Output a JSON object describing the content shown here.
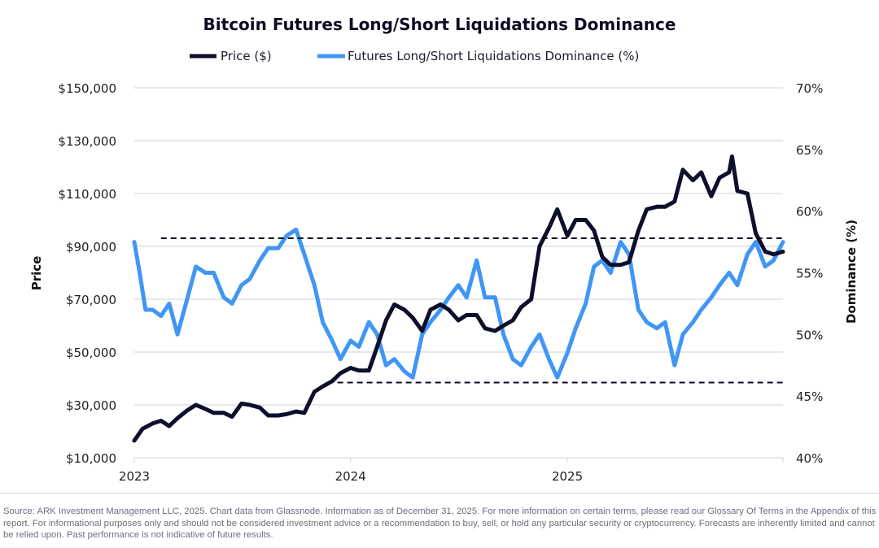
{
  "chart_data": {
    "type": "line",
    "title": "Bitcoin Futures Long/Short Liquidations Dominance",
    "legend_position": "top",
    "grid": true,
    "x_ticks": [
      "2023",
      "2024",
      "2025"
    ],
    "x_range": [
      "2023-01-01",
      "2025-12-31"
    ],
    "y_left": {
      "label": "Price",
      "range": [
        10000,
        150000
      ],
      "ticks": [
        "$10,000",
        "$30,000",
        "$50,000",
        "$70,000",
        "$90,000",
        "$110,000",
        "$130,000",
        "$150,000"
      ]
    },
    "y_right": {
      "label": "Dominance (%)",
      "range": [
        40,
        70
      ],
      "ticks": [
        "40%",
        "45%",
        "50%",
        "55%",
        "60%",
        "65%",
        "70%"
      ]
    },
    "reference_lines": [
      {
        "axis": "right",
        "value": 57.8,
        "start": "2023-02-15",
        "style": "dashed",
        "color": "#0b0b22"
      },
      {
        "axis": "right",
        "value": 46.1,
        "start": "2023-12-10",
        "style": "dashed",
        "color": "#0b0b22"
      }
    ],
    "series": [
      {
        "name": "Price ($)",
        "axis": "left",
        "color": "#0d0f2b",
        "points": [
          [
            "2023-01-01",
            16500
          ],
          [
            "2023-01-15",
            21000
          ],
          [
            "2023-02-01",
            23000
          ],
          [
            "2023-02-15",
            24000
          ],
          [
            "2023-03-01",
            22000
          ],
          [
            "2023-03-15",
            25000
          ],
          [
            "2023-04-01",
            28000
          ],
          [
            "2023-04-15",
            30000
          ],
          [
            "2023-05-01",
            28500
          ],
          [
            "2023-05-15",
            27000
          ],
          [
            "2023-06-01",
            27000
          ],
          [
            "2023-06-15",
            25500
          ],
          [
            "2023-07-01",
            30500
          ],
          [
            "2023-07-15",
            30000
          ],
          [
            "2023-08-01",
            29000
          ],
          [
            "2023-08-15",
            26000
          ],
          [
            "2023-09-01",
            26000
          ],
          [
            "2023-09-15",
            26500
          ],
          [
            "2023-10-01",
            27500
          ],
          [
            "2023-10-15",
            27000
          ],
          [
            "2023-11-01",
            35000
          ],
          [
            "2023-11-15",
            37000
          ],
          [
            "2023-12-01",
            39000
          ],
          [
            "2023-12-15",
            42000
          ],
          [
            "2024-01-01",
            44000
          ],
          [
            "2024-01-15",
            43000
          ],
          [
            "2024-02-01",
            43000
          ],
          [
            "2024-02-15",
            52000
          ],
          [
            "2024-03-01",
            62000
          ],
          [
            "2024-03-15",
            68000
          ],
          [
            "2024-04-01",
            66000
          ],
          [
            "2024-04-15",
            63000
          ],
          [
            "2024-05-01",
            58000
          ],
          [
            "2024-05-15",
            66000
          ],
          [
            "2024-06-01",
            68000
          ],
          [
            "2024-06-15",
            66000
          ],
          [
            "2024-07-01",
            62000
          ],
          [
            "2024-07-15",
            64000
          ],
          [
            "2024-08-01",
            64000
          ],
          [
            "2024-08-15",
            59000
          ],
          [
            "2024-09-01",
            58000
          ],
          [
            "2024-09-15",
            60000
          ],
          [
            "2024-10-01",
            62000
          ],
          [
            "2024-10-15",
            67000
          ],
          [
            "2024-11-01",
            70000
          ],
          [
            "2024-11-15",
            90000
          ],
          [
            "2024-12-01",
            97000
          ],
          [
            "2024-12-15",
            104000
          ],
          [
            "2025-01-01",
            94000
          ],
          [
            "2025-01-15",
            100000
          ],
          [
            "2025-02-01",
            100000
          ],
          [
            "2025-02-15",
            96000
          ],
          [
            "2025-03-01",
            86000
          ],
          [
            "2025-03-15",
            83000
          ],
          [
            "2025-04-01",
            83000
          ],
          [
            "2025-04-15",
            84000
          ],
          [
            "2025-05-01",
            96000
          ],
          [
            "2025-05-15",
            104000
          ],
          [
            "2025-06-01",
            105000
          ],
          [
            "2025-06-15",
            105000
          ],
          [
            "2025-07-01",
            107000
          ],
          [
            "2025-07-15",
            119000
          ],
          [
            "2025-08-01",
            115000
          ],
          [
            "2025-08-15",
            118000
          ],
          [
            "2025-09-01",
            109000
          ],
          [
            "2025-09-15",
            116000
          ],
          [
            "2025-10-01",
            118000
          ],
          [
            "2025-10-06",
            124000
          ],
          [
            "2025-10-15",
            111000
          ],
          [
            "2025-11-01",
            110000
          ],
          [
            "2025-11-15",
            95000
          ],
          [
            "2025-12-01",
            88000
          ],
          [
            "2025-12-15",
            87000
          ],
          [
            "2025-12-31",
            88000
          ]
        ]
      },
      {
        "name": "Futures Long/Short Liquidations Dominance (%)",
        "axis": "right",
        "color": "#4096f5",
        "points": [
          [
            "2023-01-01",
            57.5
          ],
          [
            "2023-01-10",
            55
          ],
          [
            "2023-01-20",
            52
          ],
          [
            "2023-02-01",
            52
          ],
          [
            "2023-02-15",
            51.5
          ],
          [
            "2023-03-01",
            52.5
          ],
          [
            "2023-03-15",
            50
          ],
          [
            "2023-04-01",
            53
          ],
          [
            "2023-04-15",
            55.5
          ],
          [
            "2023-05-01",
            55
          ],
          [
            "2023-05-15",
            55
          ],
          [
            "2023-06-01",
            53
          ],
          [
            "2023-06-15",
            52.5
          ],
          [
            "2023-07-01",
            54
          ],
          [
            "2023-07-15",
            54.5
          ],
          [
            "2023-08-01",
            56
          ],
          [
            "2023-08-15",
            57
          ],
          [
            "2023-09-01",
            57
          ],
          [
            "2023-09-15",
            58
          ],
          [
            "2023-10-01",
            58.5
          ],
          [
            "2023-10-15",
            56.5
          ],
          [
            "2023-11-01",
            54
          ],
          [
            "2023-11-15",
            51
          ],
          [
            "2023-12-01",
            49.5
          ],
          [
            "2023-12-15",
            48
          ],
          [
            "2024-01-01",
            49.5
          ],
          [
            "2024-01-15",
            49
          ],
          [
            "2024-02-01",
            51
          ],
          [
            "2024-02-15",
            50
          ],
          [
            "2024-03-01",
            47.5
          ],
          [
            "2024-03-15",
            48
          ],
          [
            "2024-04-01",
            47
          ],
          [
            "2024-04-15",
            46.5
          ],
          [
            "2024-05-01",
            50
          ],
          [
            "2024-05-15",
            51
          ],
          [
            "2024-06-01",
            52
          ],
          [
            "2024-06-15",
            53
          ],
          [
            "2024-07-01",
            54
          ],
          [
            "2024-07-15",
            53
          ],
          [
            "2024-08-01",
            56
          ],
          [
            "2024-08-15",
            53
          ],
          [
            "2024-09-01",
            53
          ],
          [
            "2024-09-15",
            50
          ],
          [
            "2024-10-01",
            48
          ],
          [
            "2024-10-15",
            47.5
          ],
          [
            "2024-11-01",
            49
          ],
          [
            "2024-11-15",
            50
          ],
          [
            "2024-12-01",
            48
          ],
          [
            "2024-12-15",
            46.5
          ],
          [
            "2025-01-01",
            48.5
          ],
          [
            "2025-01-15",
            50.5
          ],
          [
            "2025-02-01",
            52.5
          ],
          [
            "2025-02-15",
            55.5
          ],
          [
            "2025-03-01",
            56
          ],
          [
            "2025-03-15",
            55
          ],
          [
            "2025-04-01",
            57.5
          ],
          [
            "2025-04-15",
            56.5
          ],
          [
            "2025-05-01",
            52
          ],
          [
            "2025-05-15",
            51
          ],
          [
            "2025-06-01",
            50.5
          ],
          [
            "2025-06-15",
            51
          ],
          [
            "2025-07-01",
            47.5
          ],
          [
            "2025-07-15",
            50
          ],
          [
            "2025-08-01",
            51
          ],
          [
            "2025-08-15",
            52
          ],
          [
            "2025-09-01",
            53
          ],
          [
            "2025-09-15",
            54
          ],
          [
            "2025-10-01",
            55
          ],
          [
            "2025-10-15",
            54
          ],
          [
            "2025-11-01",
            56.5
          ],
          [
            "2025-11-15",
            57.5
          ],
          [
            "2025-12-01",
            55.5
          ],
          [
            "2025-12-15",
            56
          ],
          [
            "2025-12-31",
            57.5
          ]
        ]
      }
    ]
  },
  "footer": {
    "source": "Source: ARK Investment Management LLC, 2025. Chart data from Glassnode. Information as of December 31, 2025. For more information on certain terms, please read our Glossary Of Terms in the Appendix of this report. For informational purposes only and should not be considered investment advice or a recommendation to buy, sell, or hold any particular security or cryptocurrency. Forecasts are inherently limited and cannot be relied upon. Past performance is not indicative of future results."
  }
}
